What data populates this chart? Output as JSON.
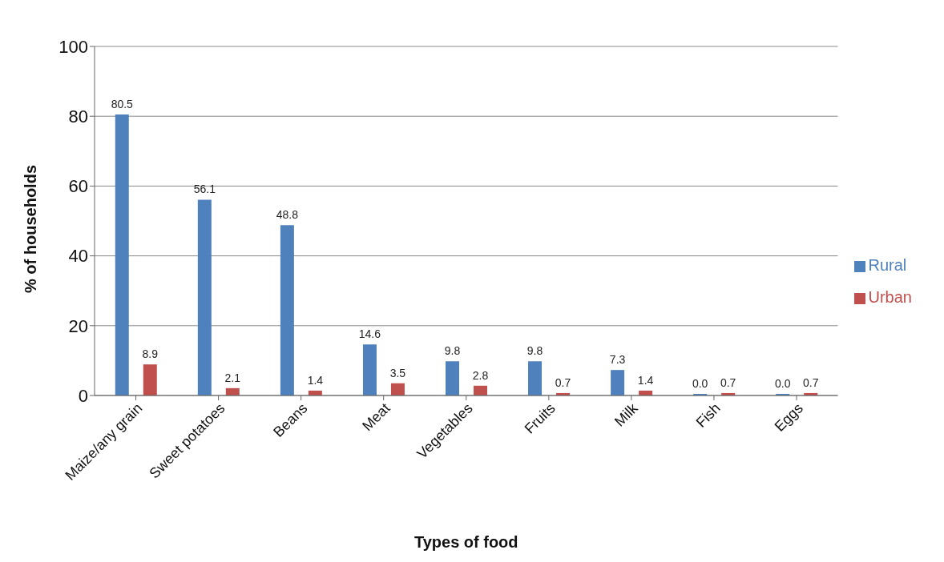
{
  "chart_data": {
    "type": "bar",
    "xlabel": "Types of food",
    "ylabel": "% of households",
    "categories": [
      "Maize/any grain",
      "Sweet potatoes",
      "Beans",
      "Meat",
      "Vegetables",
      "Fruits",
      "Milk",
      "Fish",
      "Eggs"
    ],
    "series": [
      {
        "name": "Rural",
        "color": "#4f81bd",
        "values": [
          80.5,
          56.1,
          48.8,
          14.6,
          9.8,
          9.8,
          7.3,
          0.0,
          0.0
        ],
        "value_labels": [
          "80.5",
          "56.1",
          "48.8",
          "14.6",
          "9.8",
          "9.8",
          "7.3",
          "0.0",
          "0.0"
        ]
      },
      {
        "name": "Urban",
        "color": "#c0504d",
        "values": [
          8.9,
          2.1,
          1.4,
          3.5,
          2.8,
          0.7,
          1.4,
          0.7,
          0.7
        ],
        "value_labels": [
          "8.9",
          "2.1",
          "1.4",
          "3.5",
          "2.8",
          "0.7",
          "1.4",
          "0.7",
          "0.7"
        ]
      }
    ],
    "ylim": [
      0,
      100
    ],
    "yticks": [
      0,
      20,
      40,
      60,
      80,
      100
    ],
    "grid": "y",
    "legend": "right"
  }
}
